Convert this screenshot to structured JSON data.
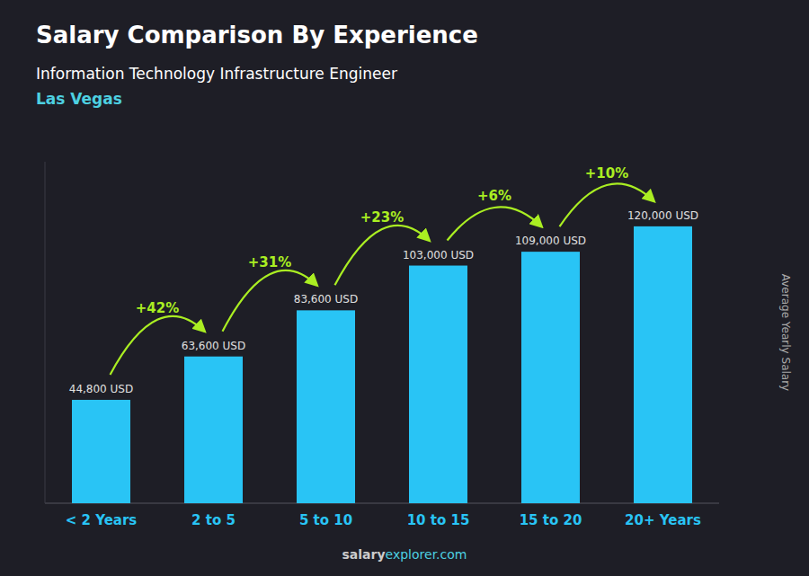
{
  "chart_data": {
    "type": "bar",
    "title": "Salary Comparison By Experience",
    "subtitle": [
      "Information Technology Infrastructure Engineer",
      "Las Vegas"
    ],
    "categories": [
      "< 2 Years",
      "2 to 5",
      "5 to 10",
      "10 to 15",
      "15 to 20",
      "20+ Years"
    ],
    "values": [
      44800,
      63600,
      83600,
      103000,
      109000,
      120000
    ],
    "value_labels": [
      "44,800 USD",
      "63,600 USD",
      "83,600 USD",
      "103,000 USD",
      "109,000 USD",
      "120,000 USD"
    ],
    "data_labels": true,
    "annotations": [
      "+42%",
      "+31%",
      "+23%",
      "+6%",
      "+10%"
    ],
    "ylabel": "Average Yearly Salary",
    "watermark": [
      "salary",
      "explorer.com"
    ],
    "color": "#29c4f5",
    "ylim": [
      0,
      148000
    ],
    "tick_labels": "x",
    "grid": false
  }
}
